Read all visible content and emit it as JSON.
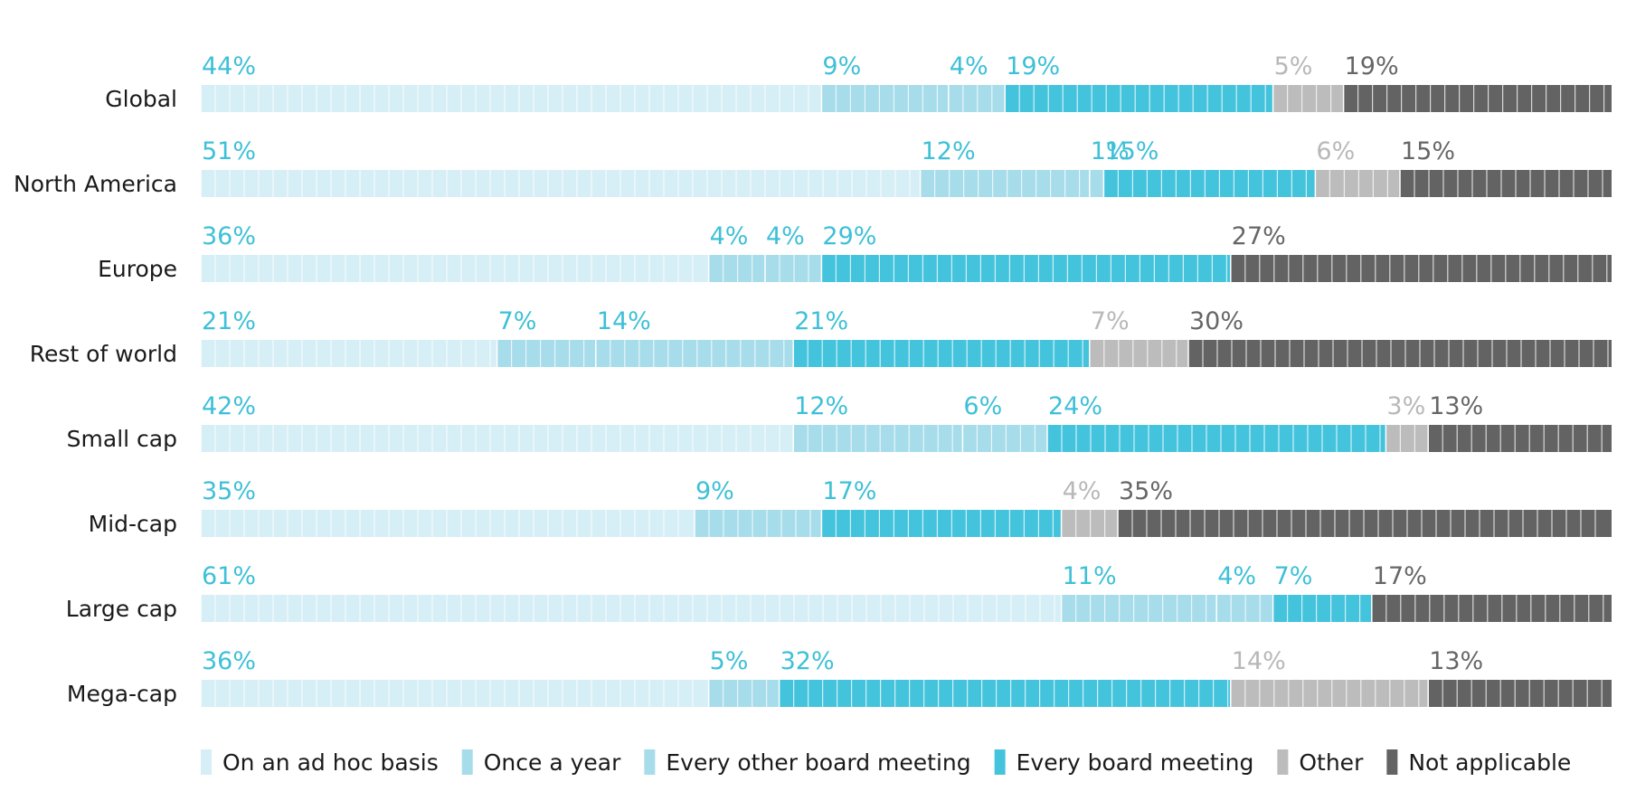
{
  "chart_data": {
    "type": "bar",
    "orientation": "horizontal",
    "stacked": true,
    "normalized": true,
    "categories": [
      "Global",
      "North America",
      "Europe",
      "Rest of world",
      "Small cap",
      "Mid-cap",
      "Large cap",
      "Mega-cap"
    ],
    "series": [
      {
        "name": "On an ad hoc basis",
        "color": "#d6eef6",
        "label_color": "#3ec0d8",
        "values": [
          44,
          51,
          36,
          21,
          42,
          35,
          61,
          36
        ]
      },
      {
        "name": "Once a year",
        "color": "#a7dcea",
        "label_color": "#3ec0d8",
        "values": [
          9,
          12,
          4,
          7,
          12,
          9,
          11,
          5
        ]
      },
      {
        "name": "Every other board meeting",
        "color": "#a7dcea",
        "label_color": "#3ec0d8",
        "values": [
          4,
          1,
          4,
          14,
          6,
          0,
          4,
          0
        ]
      },
      {
        "name": "Every board meeting",
        "color": "#44c4dc",
        "label_color": "#3ec0d8",
        "values": [
          19,
          15,
          29,
          21,
          24,
          17,
          7,
          32
        ]
      },
      {
        "name": "Other",
        "color": "#bcbcbc",
        "label_color": "#b8b8b8",
        "values": [
          5,
          6,
          0,
          7,
          3,
          4,
          0,
          14
        ]
      },
      {
        "name": "Not applicable",
        "color": "#636363",
        "label_color": "#666666",
        "values": [
          19,
          15,
          27,
          30,
          13,
          35,
          17,
          13
        ]
      }
    ],
    "value_suffix": "%",
    "legend_position": "bottom",
    "grid": false
  }
}
